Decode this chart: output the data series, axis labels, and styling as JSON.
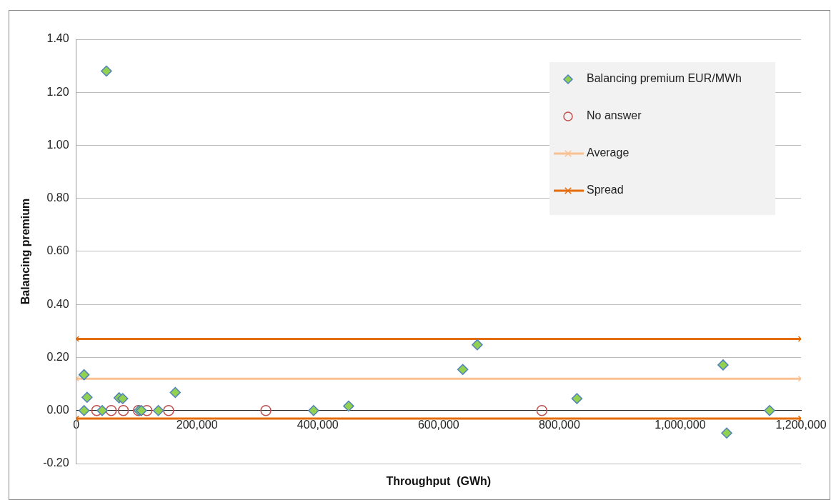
{
  "chart_data": {
    "type": "scatter",
    "xlabel": "Throughput  (GWh)",
    "ylabel": "Balancing premium",
    "xlim": [
      0,
      1200000
    ],
    "xticks": [
      0,
      {
        "value": 200000,
        "label": "200,000"
      },
      {
        "value": 400000,
        "label": "400,000"
      },
      {
        "value": 600000,
        "label": "600,000"
      },
      {
        "value": 800000,
        "label": "800,000"
      },
      {
        "value": 1000000,
        "label": "1,000,000"
      },
      {
        "value": 1200000,
        "label": "1,200,000"
      }
    ],
    "ylim": [
      -0.2,
      1.4
    ],
    "yticks": [
      {
        "value": -0.2,
        "label": "-0.20"
      },
      {
        "value": 0,
        "label": "0.00"
      },
      {
        "value": 0.2,
        "label": "0.20"
      },
      {
        "value": 0.4,
        "label": "0.40"
      },
      {
        "value": 0.6,
        "label": "0.60"
      },
      {
        "value": 0.8,
        "label": "0.80"
      },
      {
        "value": 1,
        "label": "1.00"
      },
      {
        "value": 1.2,
        "label": "1.20"
      },
      {
        "value": 1.4,
        "label": "1.40"
      }
    ],
    "grid": "y",
    "legend": "top right",
    "series": [
      {
        "name": "Balancing premium EUR/MWh",
        "type": "scatter",
        "marker": "diamond",
        "color": "#92d050",
        "x": [
          50000,
          13000,
          18000,
          13000,
          43000,
          71000,
          77000,
          104000,
          108000,
          136000,
          164000,
          393000,
          451000,
          640000,
          664000,
          829000,
          1071000,
          1077000,
          1148000
        ],
        "values": [
          1.28,
          0.135,
          0.05,
          0,
          0,
          0.048,
          0.045,
          0,
          0,
          0,
          0.068,
          0,
          0.017,
          0.155,
          0.248,
          0.045,
          0.172,
          -0.085,
          0
        ]
      },
      {
        "name": "No answer",
        "type": "scatter",
        "marker": "circle",
        "color": "#c0504d",
        "x": [
          34000,
          58000,
          78000,
          103000,
          117000,
          153000,
          314000,
          771000
        ],
        "values": [
          0,
          0,
          0,
          0,
          0,
          0,
          0,
          0
        ]
      },
      {
        "name": "Average",
        "type": "line",
        "marker": "cross",
        "color": "#fac090",
        "x": [
          0,
          1200000
        ],
        "values": [
          0.12,
          0.12
        ]
      },
      {
        "name": "Spread",
        "type": "line",
        "marker": "cross",
        "color": "#e46c0a",
        "x": [
          0,
          1200000
        ],
        "values": [
          0.27,
          0.27
        ]
      },
      {
        "type": "line",
        "marker": "cross",
        "color": "#e46c0a",
        "x": [
          0,
          1200000
        ],
        "values": [
          -0.03,
          -0.03
        ]
      }
    ]
  }
}
